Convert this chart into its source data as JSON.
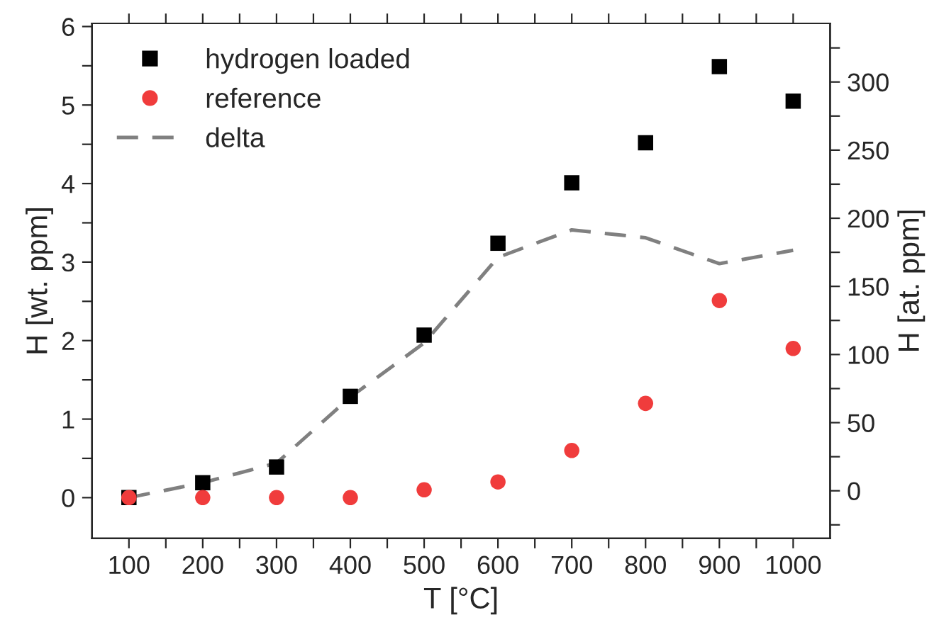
{
  "chart_data": {
    "type": "scatter",
    "xlabel": "T [°C]",
    "ylabel": "H [wt. ppm]",
    "y2label": "H [at. ppm]",
    "x": [
      100,
      200,
      300,
      400,
      500,
      600,
      700,
      800,
      900,
      1000
    ],
    "series": [
      {
        "name": "hydrogen loaded",
        "marker": "square",
        "color": "#000000",
        "values": [
          0,
          0.19,
          0.39,
          1.29,
          2.07,
          3.24,
          4.01,
          4.52,
          5.49,
          5.05
        ]
      },
      {
        "name": "reference",
        "marker": "circle",
        "color": "#f03c3c",
        "values": [
          0,
          0,
          0,
          0,
          0.1,
          0.2,
          0.6,
          1.2,
          2.51,
          1.9
        ]
      },
      {
        "name": "delta",
        "type": "line",
        "marker": "none",
        "line_style": "dashed",
        "color": "#808080",
        "values": [
          0,
          0.19,
          0.44,
          1.28,
          1.97,
          3.06,
          3.41,
          3.31,
          2.98,
          3.15
        ]
      }
    ],
    "xlim": [
      50,
      1050
    ],
    "xticks": [
      100,
      {
        "value": 150,
        "label": null
      },
      200,
      {
        "value": 250,
        "label": null
      },
      300,
      {
        "value": 350,
        "label": null
      },
      400,
      {
        "value": 450,
        "label": null
      },
      500,
      {
        "value": 550,
        "label": null
      },
      600,
      {
        "value": 650,
        "label": null
      },
      700,
      {
        "value": 750,
        "label": null
      },
      800,
      {
        "value": 850,
        "label": null
      },
      900,
      {
        "value": 950,
        "label": null
      },
      1000
    ],
    "ylim": [
      -0.52,
      6.04
    ],
    "yticks": [
      0,
      {
        "value": 0.5,
        "label": null
      },
      1,
      {
        "value": 1.5,
        "label": null
      },
      2,
      {
        "value": 2.5,
        "label": null
      },
      3,
      {
        "value": 3.5,
        "label": null
      },
      4,
      {
        "value": 4.5,
        "label": null
      },
      5,
      {
        "value": 5.5,
        "label": null
      },
      6
    ],
    "y2lim": [
      -35,
      343
    ],
    "y2ticks": [
      {
        "value": -25,
        "label": null
      },
      0,
      {
        "value": 25,
        "label": null
      },
      50,
      {
        "value": 75,
        "label": null
      },
      100,
      {
        "value": 125,
        "label": null
      },
      150,
      {
        "value": 175,
        "label": null
      },
      200,
      {
        "value": 225,
        "label": null
      },
      250,
      {
        "value": 275,
        "label": null
      },
      300,
      {
        "value": 325,
        "label": null
      }
    ],
    "legend": "top left",
    "grid": false
  }
}
